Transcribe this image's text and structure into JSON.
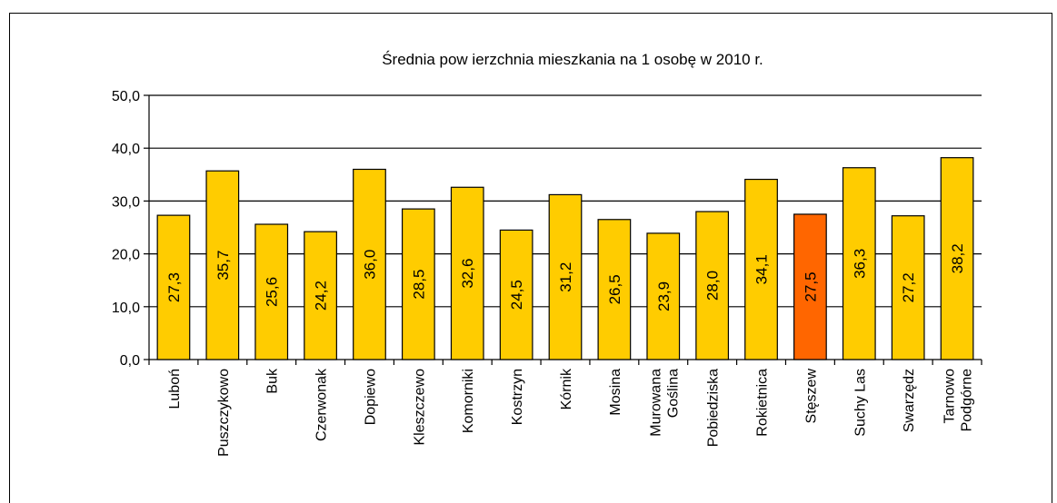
{
  "chart_data": {
    "type": "bar",
    "title": "Średnia pow ierzchnia mieszkania na 1 osobę w  2010 r.",
    "xlabel": "",
    "ylabel": "",
    "ylim": [
      0,
      50
    ],
    "yticks": [
      "0,0",
      "10,0",
      "20,0",
      "30,0",
      "40,0",
      "50,0"
    ],
    "grid": true,
    "legend": "none",
    "categories": [
      [
        "Luboń"
      ],
      [
        "Puszczykowo"
      ],
      [
        "Buk"
      ],
      [
        "Czerwonak"
      ],
      [
        "Dopiewo"
      ],
      [
        "Kleszczewo"
      ],
      [
        "Komorniki"
      ],
      [
        "Kostrzyn"
      ],
      [
        "Kórnik"
      ],
      [
        "Mosina"
      ],
      [
        "Murowana",
        "Goślina"
      ],
      [
        "Pobiedziska"
      ],
      [
        "Rokietnica"
      ],
      [
        "Stęszew"
      ],
      [
        "Suchy Las"
      ],
      [
        "Swarzędz"
      ],
      [
        "Tarnowo",
        "Podgórne"
      ]
    ],
    "values": [
      27.3,
      35.7,
      25.6,
      24.2,
      36.0,
      28.5,
      32.6,
      24.5,
      31.2,
      26.5,
      23.9,
      28.0,
      34.1,
      27.5,
      36.3,
      27.2,
      38.2
    ],
    "value_labels": [
      "27,3",
      "35,7",
      "25,6",
      "24,2",
      "36,0",
      "28,5",
      "32,6",
      "24,5",
      "31,2",
      "26,5",
      "23,9",
      "28,0",
      "34,1",
      "27,5",
      "36,3",
      "27,2",
      "38,2"
    ],
    "highlight_index": 13,
    "colors": {
      "bar": "#FFCC00",
      "highlight": "#FF6600",
      "outline": "#000000",
      "grid": "#000000"
    }
  }
}
